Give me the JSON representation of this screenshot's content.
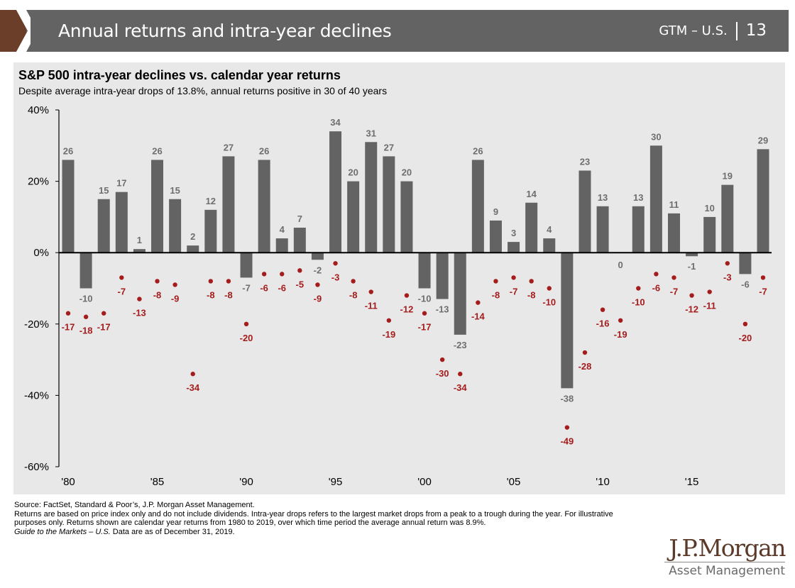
{
  "header": {
    "title": "Annual returns and intra-year declines",
    "section": "GTM – U.S.",
    "page_number": "13",
    "accent_color": "#6b3e2a",
    "bar_color": "#636363"
  },
  "chart_data": {
    "type": "bar",
    "title": "S&P 500 intra-year declines vs. calendar year returns",
    "subtitle": "Despite average intra-year drops of 13.8%, annual returns positive in 30 of 40 years",
    "xlabel": "",
    "ylabel": "",
    "ylim": [
      -60,
      40
    ],
    "yticks": [
      40,
      20,
      0,
      -20,
      -40,
      -60
    ],
    "ytick_labels": [
      "40%",
      "20%",
      "0%",
      "-20%",
      "-40%",
      "-60%"
    ],
    "x": [
      1980,
      1981,
      1982,
      1983,
      1984,
      1985,
      1986,
      1987,
      1988,
      1989,
      1990,
      1991,
      1992,
      1993,
      1994,
      1995,
      1996,
      1997,
      1998,
      1999,
      2000,
      2001,
      2002,
      2003,
      2004,
      2005,
      2006,
      2007,
      2008,
      2009,
      2010,
      2011,
      2012,
      2013,
      2014,
      2015,
      2016,
      2017,
      2018,
      2019
    ],
    "xtick_years": [
      1980,
      1985,
      1990,
      1995,
      2000,
      2005,
      2010,
      2015
    ],
    "xtick_labels": [
      "'80",
      "'85",
      "'90",
      "'95",
      "'00",
      "'05",
      "'10",
      "'15"
    ],
    "grid": false,
    "series": [
      {
        "name": "Calendar year return",
        "mark": "bar",
        "color": "#636363",
        "label_color": "#6e6e6e",
        "values": [
          26,
          -10,
          15,
          17,
          1,
          26,
          15,
          2,
          12,
          27,
          -7,
          26,
          4,
          7,
          -2,
          34,
          20,
          31,
          27,
          20,
          -10,
          -13,
          -23,
          26,
          9,
          3,
          14,
          4,
          -38,
          23,
          13,
          0,
          13,
          30,
          11,
          -1,
          10,
          19,
          -6,
          29
        ]
      },
      {
        "name": "Intra-year decline",
        "mark": "scatter",
        "color": "#a51c1c",
        "values": [
          -17,
          -18,
          -17,
          -7,
          -13,
          -8,
          -9,
          -34,
          -8,
          -8,
          -20,
          -6,
          -6,
          -5,
          -9,
          -3,
          -8,
          -11,
          -19,
          -12,
          -17,
          -30,
          -34,
          -14,
          -8,
          -7,
          -8,
          -10,
          -49,
          -28,
          -16,
          -19,
          -10,
          -6,
          -7,
          -12,
          -11,
          -3,
          -20,
          -7
        ]
      }
    ]
  },
  "footnotes": {
    "source": "Source: FactSet, Standard & Poor’s, J.P. Morgan Asset Management.",
    "note": "Returns are based on price index only and do not include dividends. Intra-year drops refers to the largest market drops from a peak to a trough during the year. For illustrative purposes only. Returns shown are calendar year returns from 1980 to 2019, over which time period the average annual return was 8.9%.",
    "guide_italic": "Guide to the Markets – U.S.",
    "guide_rest": " Data are as of December 31, 2019."
  },
  "logo": {
    "brand": "J.P.Morgan",
    "sub": "Asset Management"
  }
}
